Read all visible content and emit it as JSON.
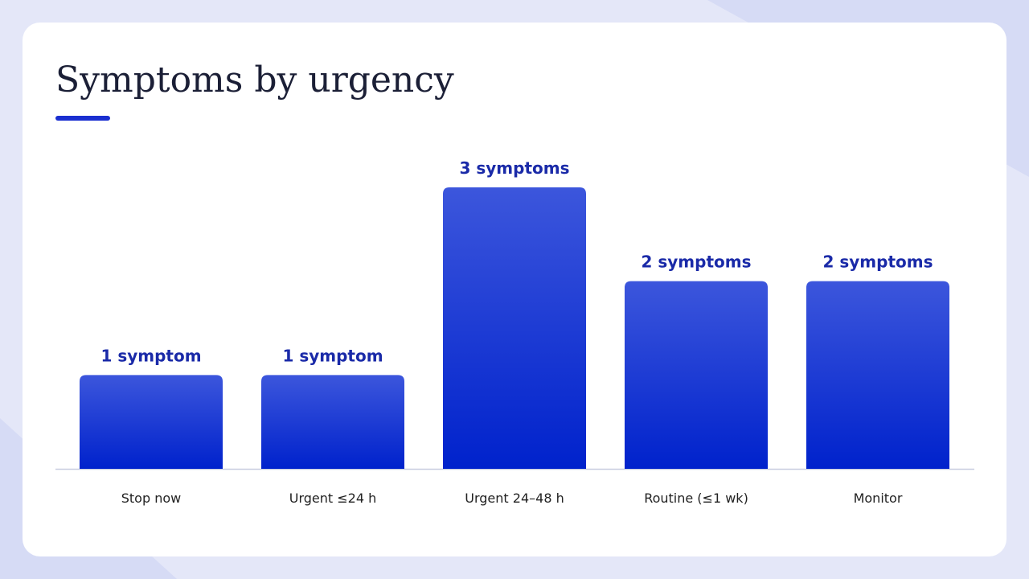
{
  "chart_data": {
    "type": "bar",
    "title": "Symptoms by urgency",
    "categories": [
      "Stop now",
      "Urgent ≤24 h",
      "Urgent 24–48 h",
      "Routine (≤1 wk)",
      "Monitor"
    ],
    "values": [
      1,
      1,
      3,
      2,
      2
    ],
    "value_labels": [
      "1 symptom",
      "1 symptom",
      "3 symptoms",
      "2 symptoms",
      "2 symptoms"
    ],
    "color": "#0a28d0",
    "ylim": [
      0,
      3
    ]
  }
}
